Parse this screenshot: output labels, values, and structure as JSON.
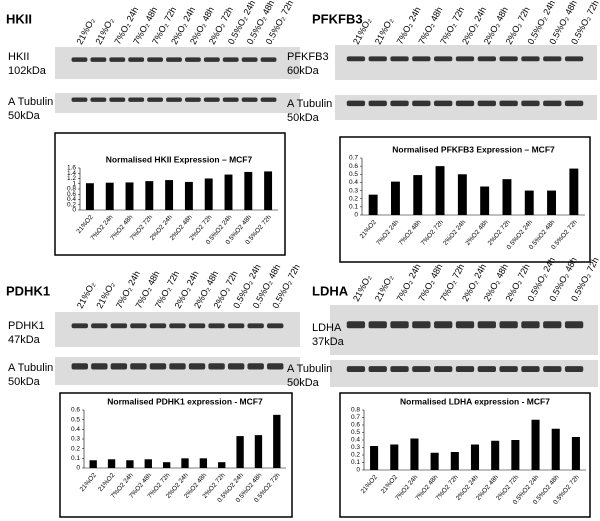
{
  "chart_data": [
    {
      "type": "bar",
      "panel_label": "HKII",
      "blot_label": "HKII",
      "blot_kda": "102kDa",
      "loading_label": "A Tubulin",
      "loading_kda": "50kDa",
      "lanes": [
        "21%O₂",
        "21%O₂",
        "7%O₂ 24h",
        "7%O₂ 48h",
        "7%O₂ 72h",
        "2%O₂ 24h",
        "2%O₂ 48h",
        "2%O₂ 72h",
        "0.5%O₂ 24h",
        "0.5%O₂ 48h",
        "0.5%O₂ 72h"
      ],
      "title": "Normalised HKII Expression – MCF7",
      "categories": [
        "21%O2",
        "7%O2 24h",
        "7%O2 48h",
        "7%O2 72h",
        "2%O2 24h",
        "2%O2 48h",
        "2%O2 72h",
        "0.5%O2 24h",
        "0.5%O2 48h",
        "0.5%O2 72h"
      ],
      "values": [
        1.02,
        1.04,
        1.05,
        1.1,
        1.14,
        1.07,
        1.2,
        1.35,
        1.45,
        1.47
      ],
      "color": "#000000",
      "ylim": [
        0,
        1.6
      ],
      "yticks": [
        0,
        0.2,
        0.4,
        0.6,
        0.8,
        1,
        1.2,
        1.4,
        1.6
      ]
    },
    {
      "type": "bar",
      "panel_label": "PFKFB3",
      "blot_label": "PFKFB3",
      "blot_kda": "60kDa",
      "loading_label": "A Tubulin",
      "loading_kda": "50kDa",
      "lanes": [
        "21%O₂",
        "21%O₂",
        "7%O₂ 24h",
        "7%O₂ 48h",
        "7%O₂ 72h",
        "2%O₂ 24h",
        "2%O₂ 48h",
        "2%O₂ 72h",
        "0.5%O₂ 24h",
        "0.5%O₂ 48h",
        "0.5%O₂ 72h"
      ],
      "title": "Normalised PFKFB3 Expression – MCF7",
      "categories": [
        "21%O2",
        "7%O2 24h",
        "7%O2 48h",
        "7%O2 72h",
        "2%O2 24h",
        "2%O2 48h",
        "2%O2 72h",
        "0.5%O2 24h",
        "0.5%O2 48h",
        "0.5%O2 72h"
      ],
      "values": [
        0.25,
        0.41,
        0.49,
        0.6,
        0.5,
        0.35,
        0.44,
        0.3,
        0.3,
        0.57
      ],
      "color": "#000000",
      "ylim": [
        0,
        0.7
      ],
      "yticks": [
        0,
        0.1,
        0.2,
        0.3,
        0.4,
        0.5,
        0.6,
        0.7
      ]
    },
    {
      "type": "bar",
      "panel_label": "PDHK1",
      "blot_label": "PDHK1",
      "blot_kda": "47kDa",
      "loading_label": "A Tubulin",
      "loading_kda": "50kDa",
      "lanes": [
        "21%O₂",
        "21%O₂",
        "7%O₂ 24h",
        "7%O₂ 48h",
        "7%O₂ 72h",
        "2%O₂ 24h",
        "2%O₂ 48h",
        "2%O₂ 72h",
        "0.5%O₂ 24h",
        "0.5%O₂ 48h",
        "0.5%O₂ 72h"
      ],
      "title": "Normalised PDHK1 expression - MCF7",
      "categories": [
        "21%O2",
        "21%O2",
        "7%O2 24h",
        "7%O2 48h",
        "7%O2 72h",
        "2%O2 24h",
        "2%O2 48h",
        "2%O2 72h",
        "0.5%O2 24h",
        "0.5%O2 48h",
        "0.5%O2 72h"
      ],
      "values": [
        0.08,
        0.09,
        0.08,
        0.09,
        0.06,
        0.1,
        0.1,
        0.06,
        0.33,
        0.34,
        0.55
      ],
      "color": "#000000",
      "ylim": [
        0,
        0.6
      ],
      "yticks": [
        0,
        0.1,
        0.2,
        0.3,
        0.4,
        0.5,
        0.6
      ]
    },
    {
      "type": "bar",
      "panel_label": "LDHA",
      "blot_label": "LDHA",
      "blot_kda": "37kDa",
      "loading_label": "A Tubulin",
      "loading_kda": "50kDa",
      "lanes": [
        "21%O₂",
        "21%O₂",
        "7%O₂ 24h",
        "7%O₂ 48h",
        "7%O₂ 72h",
        "2%O₂ 24h",
        "2%O₂ 48h",
        "2%O₂ 72h",
        "0.5%O₂ 24h",
        "0.5%O₂ 48h",
        "0.5%O₂ 72h"
      ],
      "title": "Normalised LDHA expression - MCF7",
      "categories": [
        "21%O2",
        "21%O2",
        "7%O2 24h",
        "7%O2 48h",
        "7%O2 72h",
        "2%O2 24h",
        "2%O2 48h",
        "2%O2 72h",
        "0.5%O2 24h",
        "0.5%O2 48h",
        "0.5%O2 72h"
      ],
      "values": [
        0.32,
        0.34,
        0.42,
        0.23,
        0.24,
        0.34,
        0.39,
        0.4,
        0.67,
        0.55,
        0.44
      ],
      "color": "#000000",
      "ylim": [
        0,
        0.8
      ],
      "yticks": [
        0,
        0.1,
        0.2,
        0.3,
        0.4,
        0.5,
        0.6,
        0.7,
        0.8
      ]
    }
  ]
}
